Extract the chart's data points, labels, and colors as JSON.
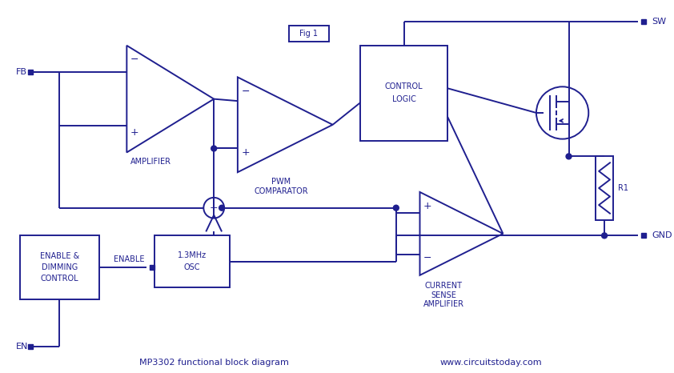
{
  "bg_color": "#ffffff",
  "lc": "#1f1f8f",
  "title": "MP3302 functional block diagram",
  "website": "www.circuitstoday.com",
  "fig1": "Fig 1"
}
